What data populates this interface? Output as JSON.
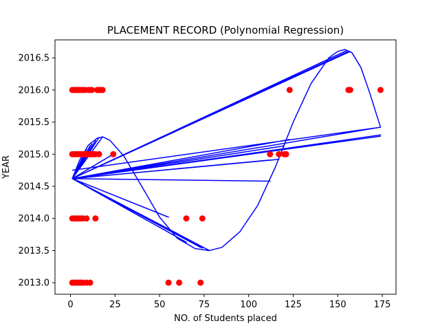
{
  "chart_data": {
    "type": "scatter",
    "title": "PLACEMENT RECORD (Polynomial Regression)",
    "xlabel": "NO. of Students placed",
    "ylabel": "YEAR",
    "xlim": [
      -8.7,
      182.7
    ],
    "ylim": [
      2012.82,
      2016.78
    ],
    "xticks": [
      0,
      25,
      50,
      75,
      100,
      125,
      150,
      175
    ],
    "xtick_labels": [
      "0",
      "25",
      "50",
      "75",
      "100",
      "125",
      "150",
      "175"
    ],
    "yticks": [
      2013.0,
      2013.5,
      2014.0,
      2014.5,
      2015.0,
      2015.5,
      2016.0,
      2016.5
    ],
    "ytick_labels": [
      "2013.0",
      "2013.5",
      "2014.0",
      "2014.5",
      "2015.0",
      "2015.5",
      "2016.0",
      "2016.5"
    ],
    "grid": false,
    "series": [
      {
        "kind": "scatter",
        "color": "#ff0000",
        "points": [
          [
            1,
            2016
          ],
          [
            2,
            2016
          ],
          [
            3,
            2016
          ],
          [
            4,
            2016
          ],
          [
            5,
            2016
          ],
          [
            6,
            2016
          ],
          [
            7,
            2016
          ],
          [
            8,
            2016
          ],
          [
            10,
            2016
          ],
          [
            11,
            2016
          ],
          [
            12,
            2016
          ],
          [
            15,
            2016
          ],
          [
            16,
            2016
          ],
          [
            17,
            2016
          ],
          [
            18,
            2016
          ],
          [
            123,
            2016
          ],
          [
            156,
            2016
          ],
          [
            157,
            2016
          ],
          [
            174,
            2016
          ],
          [
            1,
            2015
          ],
          [
            2,
            2015
          ],
          [
            3,
            2015
          ],
          [
            4,
            2015
          ],
          [
            5,
            2015
          ],
          [
            6,
            2015
          ],
          [
            7,
            2015
          ],
          [
            8,
            2015
          ],
          [
            9,
            2015
          ],
          [
            10,
            2015
          ],
          [
            11,
            2015
          ],
          [
            12,
            2015
          ],
          [
            13,
            2015
          ],
          [
            14,
            2015
          ],
          [
            16,
            2015
          ],
          [
            24,
            2015
          ],
          [
            112,
            2015
          ],
          [
            117,
            2015
          ],
          [
            120,
            2015
          ],
          [
            121,
            2015
          ],
          [
            1,
            2014
          ],
          [
            2,
            2014
          ],
          [
            3,
            2014
          ],
          [
            4,
            2014
          ],
          [
            5,
            2014
          ],
          [
            6,
            2014
          ],
          [
            7,
            2014
          ],
          [
            9,
            2014
          ],
          [
            14,
            2014
          ],
          [
            65,
            2014
          ],
          [
            74,
            2014
          ],
          [
            1,
            2013
          ],
          [
            2,
            2013
          ],
          [
            3,
            2013
          ],
          [
            4,
            2013
          ],
          [
            5,
            2013
          ],
          [
            6,
            2013
          ],
          [
            7,
            2013
          ],
          [
            9,
            2013
          ],
          [
            11,
            2013
          ],
          [
            55,
            2013
          ],
          [
            61,
            2013
          ],
          [
            73,
            2013
          ]
        ]
      },
      {
        "kind": "line",
        "color": "#0000ff",
        "points": [
          [
            1,
            2014.62
          ],
          [
            14,
            2015.21
          ],
          [
            1,
            2014.62
          ],
          [
            16,
            2015.26
          ],
          [
            1,
            2014.62
          ],
          [
            154,
            2016.6
          ],
          [
            1,
            2014.62
          ],
          [
            174,
            2015.42
          ],
          [
            1,
            2014.62
          ],
          [
            78,
            2013.5
          ],
          [
            1,
            2014.62
          ],
          [
            112,
            2014.58
          ],
          [
            1,
            2014.62
          ],
          [
            174,
            2015.28
          ],
          [
            1,
            2014.62
          ],
          [
            123,
            2015.23
          ],
          [
            1,
            2014.62
          ],
          [
            155,
            2016.61
          ],
          [
            1,
            2014.62
          ],
          [
            24,
            2015.0
          ],
          [
            1,
            2014.62
          ],
          [
            120,
            2015.13
          ],
          [
            1,
            2014.62
          ],
          [
            74,
            2013.54
          ],
          [
            1,
            2014.62
          ],
          [
            18,
            2015.27
          ],
          [
            1,
            2014.62
          ],
          [
            65,
            2013.63
          ],
          [
            1,
            2014.62
          ],
          [
            156,
            2016.6
          ],
          [
            1,
            2014.62
          ],
          [
            117,
            2014.92
          ],
          [
            1,
            2014.62
          ],
          [
            12,
            2015.16
          ],
          [
            1,
            2014.62
          ],
          [
            174,
            2015.42
          ],
          [
            1,
            2014.62
          ],
          [
            121,
            2015.08
          ],
          [
            1,
            2014.62
          ],
          [
            157,
            2016.6
          ],
          [
            1,
            2014.62
          ],
          [
            73,
            2013.55
          ],
          [
            1,
            2014.62
          ],
          [
            55,
            2014.02
          ],
          [
            1,
            2014.62
          ],
          [
            61,
            2013.75
          ],
          [
            1,
            2014.62
          ],
          [
            174,
            2015.3
          ],
          [
            1,
            2014.62
          ],
          [
            11,
            2015.13
          ],
          [
            1,
            2014.62
          ],
          [
            9,
            2015.08
          ],
          [
            1,
            2014.62
          ],
          [
            112,
            2014.91
          ],
          [
            1,
            2014.62
          ],
          [
            174,
            2015.42
          ],
          [
            1,
            2014.75
          ]
        ]
      },
      {
        "kind": "curve",
        "color": "#0000ff",
        "points": [
          [
            1,
            2014.62
          ],
          [
            5,
            2014.9
          ],
          [
            10,
            2015.14
          ],
          [
            15,
            2015.25
          ],
          [
            18,
            2015.27
          ],
          [
            22,
            2015.22
          ],
          [
            30,
            2014.97
          ],
          [
            40,
            2014.5
          ],
          [
            50,
            2014.02
          ],
          [
            60,
            2013.69
          ],
          [
            70,
            2013.53
          ],
          [
            78,
            2013.5
          ],
          [
            85,
            2013.55
          ],
          [
            95,
            2013.79
          ],
          [
            105,
            2014.2
          ],
          [
            115,
            2014.8
          ],
          [
            125,
            2015.5
          ],
          [
            135,
            2016.1
          ],
          [
            145,
            2016.5
          ],
          [
            150,
            2016.6
          ],
          [
            154,
            2016.63
          ],
          [
            158,
            2016.58
          ],
          [
            163,
            2016.35
          ],
          [
            168,
            2015.95
          ],
          [
            174,
            2015.42
          ]
        ]
      }
    ]
  }
}
